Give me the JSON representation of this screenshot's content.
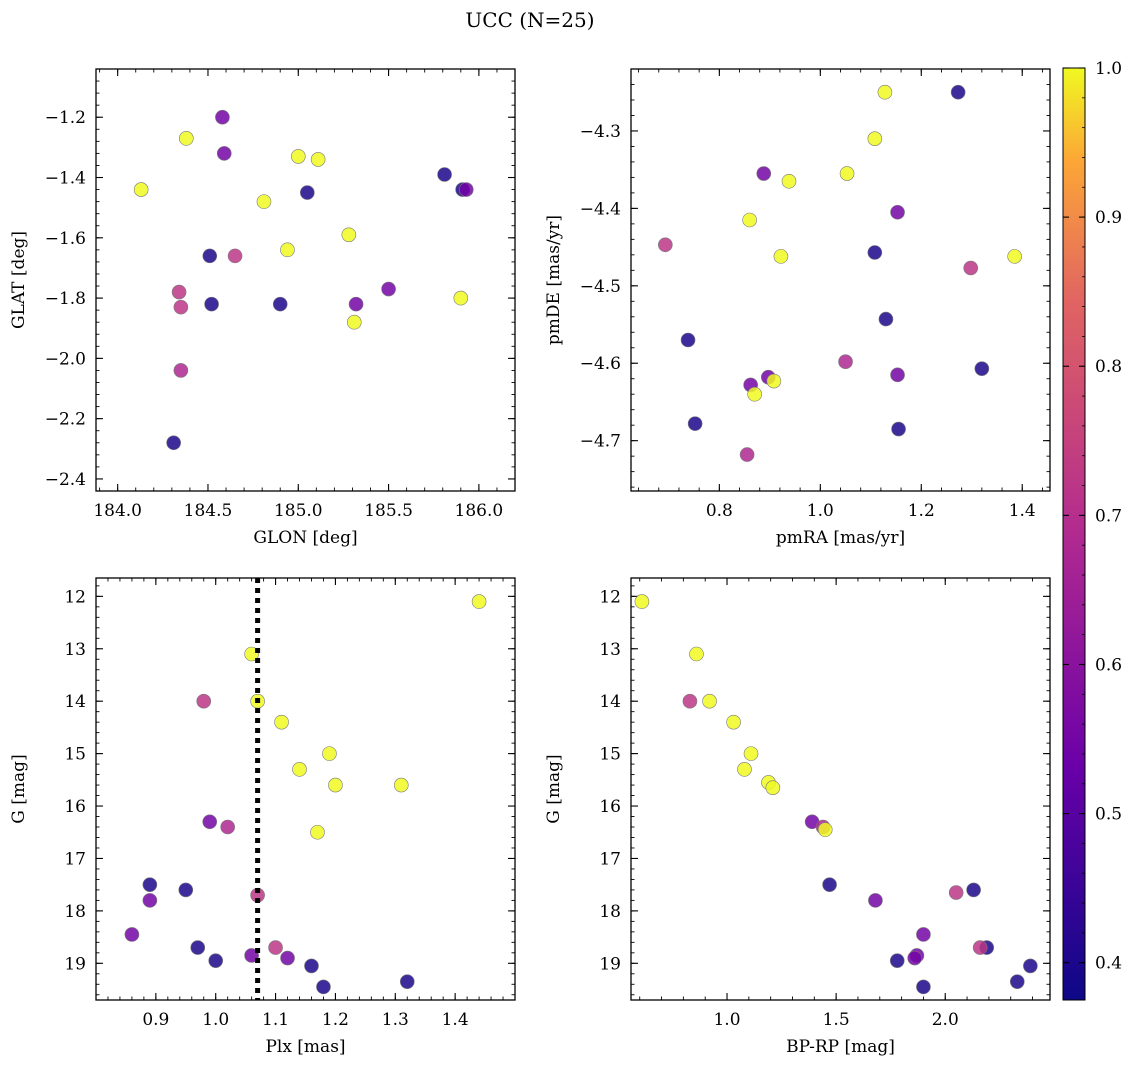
{
  "title": "UCC (N=25)",
  "colorbar": {
    "min": 0.375,
    "max": 1.0,
    "ticks": [
      "0.4",
      "0.5",
      "0.6",
      "0.7",
      "0.8",
      "0.9",
      "1.0"
    ],
    "colormap": "plasma"
  },
  "chart_data": [
    {
      "type": "scatter",
      "xlabel": "GLON [deg]",
      "ylabel": "GLAT [deg]",
      "xlim": [
        183.88,
        186.2
      ],
      "ylim": [
        -2.44,
        -1.04
      ],
      "xticks": [
        "184.0",
        "184.5",
        "185.0",
        "185.5",
        "186.0"
      ],
      "yticks": [
        "−1.2",
        "−1.4",
        "−1.6",
        "−1.8",
        "−2.0",
        "−2.2",
        "−2.4"
      ],
      "points": [
        {
          "x": 184.13,
          "y": -1.44,
          "c": 1.0
        },
        {
          "x": 184.38,
          "y": -1.27,
          "c": 1.0
        },
        {
          "x": 184.58,
          "y": -1.2,
          "c": 0.55
        },
        {
          "x": 184.59,
          "y": -1.32,
          "c": 0.55
        },
        {
          "x": 185.0,
          "y": -1.33,
          "c": 1.0
        },
        {
          "x": 185.11,
          "y": -1.34,
          "c": 1.0
        },
        {
          "x": 184.81,
          "y": -1.48,
          "c": 1.0
        },
        {
          "x": 185.05,
          "y": -1.45,
          "c": 0.4
        },
        {
          "x": 185.81,
          "y": -1.39,
          "c": 0.4
        },
        {
          "x": 185.91,
          "y": -1.44,
          "c": 0.4
        },
        {
          "x": 185.93,
          "y": -1.44,
          "c": 0.55
        },
        {
          "x": 184.51,
          "y": -1.66,
          "c": 0.4
        },
        {
          "x": 184.65,
          "y": -1.66,
          "c": 0.72
        },
        {
          "x": 184.94,
          "y": -1.64,
          "c": 1.0
        },
        {
          "x": 185.28,
          "y": -1.59,
          "c": 1.0
        },
        {
          "x": 184.34,
          "y": -1.78,
          "c": 0.72
        },
        {
          "x": 184.35,
          "y": -1.83,
          "c": 0.72
        },
        {
          "x": 184.52,
          "y": -1.82,
          "c": 0.4
        },
        {
          "x": 184.9,
          "y": -1.82,
          "c": 0.4
        },
        {
          "x": 185.32,
          "y": -1.82,
          "c": 0.55
        },
        {
          "x": 185.5,
          "y": -1.77,
          "c": 0.55
        },
        {
          "x": 185.9,
          "y": -1.8,
          "c": 1.0
        },
        {
          "x": 185.31,
          "y": -1.88,
          "c": 1.0
        },
        {
          "x": 184.35,
          "y": -2.04,
          "c": 0.68
        },
        {
          "x": 184.31,
          "y": -2.28,
          "c": 0.4
        }
      ]
    },
    {
      "type": "scatter",
      "xlabel": "pmRA [mas/yr]",
      "ylabel": "pmDE [mas/yr]",
      "xlim": [
        0.625,
        1.455
      ],
      "ylim": [
        -4.765,
        -4.22
      ],
      "xticks": [
        "0.8",
        "1.0",
        "1.2",
        "1.4"
      ],
      "yticks": [
        "−4.3",
        "−4.4",
        "−4.5",
        "−4.6",
        "−4.7"
      ],
      "points": [
        {
          "x": 1.128,
          "y": -4.25,
          "c": 1.0
        },
        {
          "x": 1.273,
          "y": -4.25,
          "c": 0.4
        },
        {
          "x": 1.108,
          "y": -4.31,
          "c": 1.0
        },
        {
          "x": 0.888,
          "y": -4.355,
          "c": 0.55
        },
        {
          "x": 0.938,
          "y": -4.365,
          "c": 1.0
        },
        {
          "x": 1.053,
          "y": -4.355,
          "c": 1.0
        },
        {
          "x": 1.153,
          "y": -4.405,
          "c": 0.55
        },
        {
          "x": 0.86,
          "y": -4.415,
          "c": 1.0
        },
        {
          "x": 0.693,
          "y": -4.447,
          "c": 0.72
        },
        {
          "x": 1.108,
          "y": -4.457,
          "c": 0.4
        },
        {
          "x": 0.922,
          "y": -4.462,
          "c": 1.0
        },
        {
          "x": 1.298,
          "y": -4.477,
          "c": 0.72
        },
        {
          "x": 1.385,
          "y": -4.462,
          "c": 1.0
        },
        {
          "x": 1.13,
          "y": -4.543,
          "c": 0.4
        },
        {
          "x": 0.738,
          "y": -4.57,
          "c": 0.4
        },
        {
          "x": 1.05,
          "y": -4.598,
          "c": 0.68
        },
        {
          "x": 1.32,
          "y": -4.607,
          "c": 0.4
        },
        {
          "x": 1.153,
          "y": -4.615,
          "c": 0.55
        },
        {
          "x": 0.897,
          "y": -4.618,
          "c": 0.55
        },
        {
          "x": 0.862,
          "y": -4.628,
          "c": 0.55
        },
        {
          "x": 0.908,
          "y": -4.623,
          "c": 1.0
        },
        {
          "x": 0.87,
          "y": -4.64,
          "c": 1.0
        },
        {
          "x": 0.752,
          "y": -4.678,
          "c": 0.4
        },
        {
          "x": 1.155,
          "y": -4.685,
          "c": 0.4
        },
        {
          "x": 0.855,
          "y": -4.718,
          "c": 0.68
        }
      ]
    },
    {
      "type": "scatter",
      "xlabel": "Plx [mas]",
      "ylabel": "G [mag]",
      "xlim": [
        0.8,
        1.5
      ],
      "ylim": [
        19.7,
        11.65
      ],
      "xticks": [
        "0.9",
        "1.0",
        "1.1",
        "1.2",
        "1.3",
        "1.4"
      ],
      "yticks": [
        "12",
        "13",
        "14",
        "15",
        "16",
        "17",
        "18",
        "19"
      ],
      "vline": 1.07,
      "points": [
        {
          "x": 1.44,
          "y": 12.1,
          "c": 1.0
        },
        {
          "x": 1.06,
          "y": 13.1,
          "c": 1.0
        },
        {
          "x": 0.98,
          "y": 14.0,
          "c": 0.72
        },
        {
          "x": 1.07,
          "y": 14.0,
          "c": 1.0
        },
        {
          "x": 1.11,
          "y": 14.4,
          "c": 1.0
        },
        {
          "x": 1.19,
          "y": 15.0,
          "c": 1.0
        },
        {
          "x": 1.14,
          "y": 15.3,
          "c": 1.0
        },
        {
          "x": 1.2,
          "y": 15.6,
          "c": 1.0
        },
        {
          "x": 1.31,
          "y": 15.6,
          "c": 1.0
        },
        {
          "x": 0.99,
          "y": 16.3,
          "c": 0.55
        },
        {
          "x": 1.02,
          "y": 16.4,
          "c": 0.68
        },
        {
          "x": 1.17,
          "y": 16.5,
          "c": 1.0
        },
        {
          "x": 0.89,
          "y": 17.5,
          "c": 0.4
        },
        {
          "x": 0.95,
          "y": 17.6,
          "c": 0.4
        },
        {
          "x": 1.07,
          "y": 17.7,
          "c": 0.72
        },
        {
          "x": 0.89,
          "y": 17.8,
          "c": 0.55
        },
        {
          "x": 0.86,
          "y": 18.45,
          "c": 0.55
        },
        {
          "x": 0.97,
          "y": 18.7,
          "c": 0.4
        },
        {
          "x": 1.1,
          "y": 18.7,
          "c": 0.72
        },
        {
          "x": 1.0,
          "y": 18.95,
          "c": 0.4
        },
        {
          "x": 1.06,
          "y": 18.85,
          "c": 0.55
        },
        {
          "x": 1.12,
          "y": 18.9,
          "c": 0.55
        },
        {
          "x": 1.16,
          "y": 19.05,
          "c": 0.4
        },
        {
          "x": 1.18,
          "y": 19.45,
          "c": 0.4
        },
        {
          "x": 1.32,
          "y": 19.35,
          "c": 0.4
        }
      ]
    },
    {
      "type": "scatter",
      "xlabel": "BP-RP [mag]",
      "ylabel": "G [mag]",
      "xlim": [
        0.56,
        2.48
      ],
      "ylim": [
        19.7,
        11.65
      ],
      "xticks": [
        "1.0",
        "1.5",
        "2.0"
      ],
      "yticks": [
        "12",
        "13",
        "14",
        "15",
        "16",
        "17",
        "18",
        "19"
      ],
      "points": [
        {
          "x": 0.61,
          "y": 12.1,
          "c": 1.0
        },
        {
          "x": 0.86,
          "y": 13.1,
          "c": 1.0
        },
        {
          "x": 0.83,
          "y": 14.0,
          "c": 0.72
        },
        {
          "x": 0.92,
          "y": 14.0,
          "c": 1.0
        },
        {
          "x": 1.03,
          "y": 14.4,
          "c": 1.0
        },
        {
          "x": 1.11,
          "y": 15.0,
          "c": 1.0
        },
        {
          "x": 1.08,
          "y": 15.3,
          "c": 1.0
        },
        {
          "x": 1.19,
          "y": 15.55,
          "c": 1.0
        },
        {
          "x": 1.21,
          "y": 15.65,
          "c": 1.0
        },
        {
          "x": 1.39,
          "y": 16.3,
          "c": 0.55
        },
        {
          "x": 1.44,
          "y": 16.4,
          "c": 0.68
        },
        {
          "x": 1.45,
          "y": 16.45,
          "c": 1.0
        },
        {
          "x": 1.47,
          "y": 17.5,
          "c": 0.4
        },
        {
          "x": 1.68,
          "y": 17.8,
          "c": 0.55
        },
        {
          "x": 2.05,
          "y": 17.65,
          "c": 0.72
        },
        {
          "x": 2.13,
          "y": 17.6,
          "c": 0.4
        },
        {
          "x": 1.9,
          "y": 18.45,
          "c": 0.55
        },
        {
          "x": 2.19,
          "y": 18.7,
          "c": 0.4
        },
        {
          "x": 2.16,
          "y": 18.7,
          "c": 0.72
        },
        {
          "x": 1.78,
          "y": 18.95,
          "c": 0.4
        },
        {
          "x": 1.87,
          "y": 18.85,
          "c": 0.55
        },
        {
          "x": 1.86,
          "y": 18.9,
          "c": 0.55
        },
        {
          "x": 2.33,
          "y": 19.35,
          "c": 0.4
        },
        {
          "x": 2.39,
          "y": 19.05,
          "c": 0.4
        },
        {
          "x": 1.9,
          "y": 19.45,
          "c": 0.4
        }
      ]
    }
  ]
}
